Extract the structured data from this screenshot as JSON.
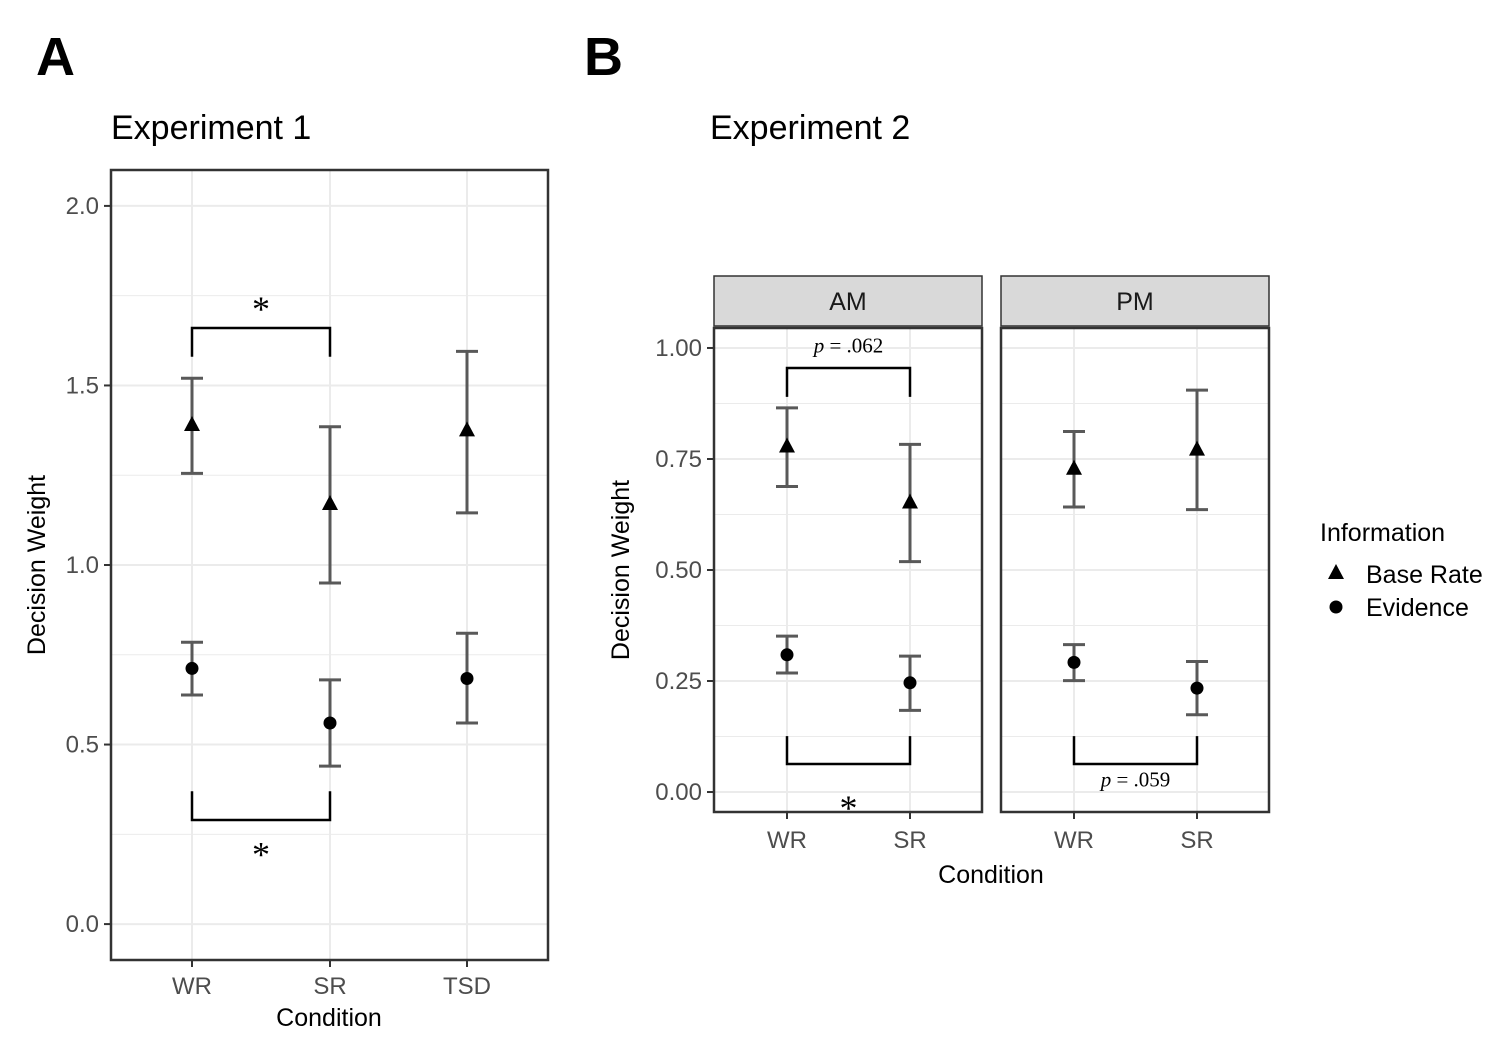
{
  "figure": {
    "panel_a_letter": "A",
    "panel_b_letter": "B"
  },
  "legend": {
    "title": "Information",
    "items": [
      {
        "label": "Base Rate",
        "shape": "triangle"
      },
      {
        "label": "Evidence",
        "shape": "circle"
      }
    ]
  },
  "colors": {
    "grid": "#ebebeb",
    "panel_border": "#333333",
    "errorbar": "#595959",
    "point": "#000000",
    "strip_fill": "#d9d9d9",
    "tick_text": "#4d4d4d"
  },
  "chart_data": [
    {
      "type": "scatter",
      "title": "Experiment 1",
      "xlabel": "Condition",
      "ylabel": "Decision Weight",
      "categories": [
        "WR",
        "SR",
        "TSD"
      ],
      "ylim": [
        -0.1,
        2.1
      ],
      "yticks": [
        0.0,
        0.5,
        1.0,
        1.5,
        2.0
      ],
      "ytick_labels": [
        "0.0",
        "0.5",
        "1.0",
        "1.5",
        "2.0"
      ],
      "grid": true,
      "series": [
        {
          "name": "Base Rate",
          "shape": "triangle",
          "values": [
            1.39,
            1.17,
            1.375
          ],
          "lower": [
            1.255,
            0.95,
            1.145
          ],
          "upper": [
            1.52,
            1.385,
            1.595
          ]
        },
        {
          "name": "Evidence",
          "shape": "circle",
          "values": [
            0.712,
            0.56,
            0.684
          ],
          "lower": [
            0.638,
            0.44,
            0.56
          ],
          "upper": [
            0.785,
            0.68,
            0.81
          ]
        }
      ],
      "annotations": [
        {
          "text": "*",
          "from": "WR",
          "to": "SR",
          "bracket_y": 1.66,
          "leg_to": 1.58,
          "text_y": 1.73
        },
        {
          "text": "*",
          "from": "WR",
          "to": "SR",
          "bracket_y": 0.29,
          "leg_to": 0.37,
          "text_y": 0.21
        }
      ]
    },
    {
      "type": "scatter",
      "title": "Experiment 2",
      "xlabel": "Condition",
      "ylabel": "Decision Weight",
      "facets": [
        "AM",
        "PM"
      ],
      "categories": [
        "WR",
        "SR"
      ],
      "ylim": [
        -0.045,
        1.045
      ],
      "yticks": [
        0.0,
        0.25,
        0.5,
        0.75,
        1.0
      ],
      "ytick_labels": [
        "0.00",
        "0.25",
        "0.50",
        "0.75",
        "1.00"
      ],
      "grid": true,
      "legend_position": "right",
      "panels": [
        {
          "facet": "AM",
          "series": [
            {
              "name": "Base Rate",
              "shape": "triangle",
              "values": [
                0.778,
                0.652
              ],
              "lower": [
                0.688,
                0.519
              ],
              "upper": [
                0.865,
                0.783
              ]
            },
            {
              "name": "Evidence",
              "shape": "circle",
              "values": [
                0.309,
                0.246
              ],
              "lower": [
                0.268,
                0.184
              ],
              "upper": [
                0.351,
                0.306
              ]
            }
          ],
          "annotations": [
            {
              "text": "= .062",
              "italic_prefix": "p",
              "from": "WR",
              "to": "SR",
              "bracket_y": 0.955,
              "leg_to": 0.89,
              "text_y": 0.99
            },
            {
              "text": "*",
              "from": "WR",
              "to": "SR",
              "bracket_y": 0.063,
              "leg_to": 0.126,
              "text_y": -0.022
            }
          ]
        },
        {
          "facet": "PM",
          "series": [
            {
              "name": "Base Rate",
              "shape": "triangle",
              "values": [
                0.728,
                0.771
              ],
              "lower": [
                0.642,
                0.636
              ],
              "upper": [
                0.812,
                0.905
              ]
            },
            {
              "name": "Evidence",
              "shape": "circle",
              "values": [
                0.292,
                0.234
              ],
              "lower": [
                0.251,
                0.174
              ],
              "upper": [
                0.332,
                0.294
              ]
            }
          ],
          "annotations": [
            {
              "text": "= .059",
              "italic_prefix": "p",
              "from": "WR",
              "to": "SR",
              "bracket_y": 0.063,
              "leg_to": 0.126,
              "text_y": 0.012
            }
          ]
        }
      ]
    }
  ]
}
